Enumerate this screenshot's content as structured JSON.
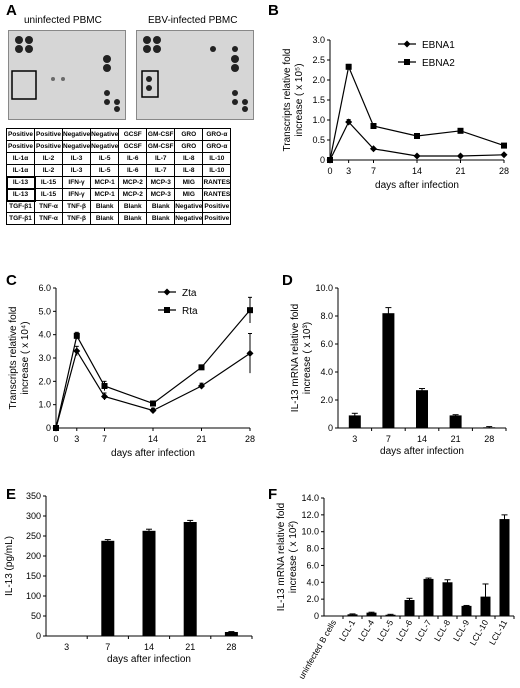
{
  "panels": {
    "A": {
      "letter": "A",
      "labels": [
        "uninfected PBMC",
        "EBV-infected PBMC"
      ],
      "grid": [
        [
          "Positive",
          "Positive",
          "Negative",
          "Negative",
          "GCSF",
          "GM-CSF",
          "GRO",
          "GRO-α"
        ],
        [
          "Positive",
          "Positive",
          "Negative",
          "Negative",
          "GCSF",
          "GM-CSF",
          "GRO",
          "GRO-α"
        ],
        [
          "IL-1α",
          "IL-2",
          "IL-3",
          "IL-5",
          "IL-6",
          "IL-7",
          "IL-8",
          "IL-10"
        ],
        [
          "IL-1α",
          "IL-2",
          "IL-3",
          "IL-5",
          "IL-6",
          "IL-7",
          "IL-8",
          "IL-10"
        ],
        [
          "IL-13",
          "IL-15",
          "IFN-γ",
          "MCP-1",
          "MCP-2",
          "MCP-3",
          "MIG",
          "RANTES"
        ],
        [
          "IL-13",
          "IL-15",
          "IFN-γ",
          "MCP-1",
          "MCP-2",
          "MCP-3",
          "MIG",
          "RANTES"
        ],
        [
          "TGF-β1",
          "TNF-α",
          "TNF-β",
          "Blank",
          "Blank",
          "Blank",
          "Negative",
          "Positive"
        ],
        [
          "TGF-β1",
          "TNF-α",
          "TNF-β",
          "Blank",
          "Blank",
          "Blank",
          "Negative",
          "Positive"
        ]
      ]
    },
    "B": {
      "letter": "B"
    },
    "C": {
      "letter": "C"
    },
    "D": {
      "letter": "D"
    },
    "E": {
      "letter": "E"
    },
    "F": {
      "letter": "F"
    }
  },
  "chart_data": [
    {
      "id": "B",
      "type": "line",
      "x": [
        0,
        3,
        7,
        14,
        21,
        28
      ],
      "xticks": [
        "0",
        "3",
        "7",
        "14",
        "21",
        "28"
      ],
      "xlim": [
        0,
        28
      ],
      "xlabel": "days after infection",
      "ylabel": [
        "Transcripts relative fold",
        "increase ( x 10⁵)"
      ],
      "ylim": [
        0,
        3.0
      ],
      "yticks": [
        "0",
        "0.5",
        "1.0",
        "1.5",
        "2.0",
        "2.5",
        "3.0"
      ],
      "legend_position": "top-right",
      "series": [
        {
          "name": "EBNA1",
          "marker": "diamond",
          "values": [
            0,
            0.95,
            0.28,
            0.1,
            0.1,
            0.13
          ],
          "errors": [
            0,
            0.06,
            0.02,
            0.01,
            0.01,
            0.01
          ]
        },
        {
          "name": "EBNA2",
          "marker": "square",
          "values": [
            0,
            2.33,
            0.85,
            0.6,
            0.73,
            0.36
          ],
          "errors": [
            0,
            0.06,
            0.04,
            0.02,
            0.03,
            0.03
          ]
        }
      ]
    },
    {
      "id": "C",
      "type": "line",
      "x": [
        0,
        3,
        7,
        14,
        21,
        28
      ],
      "xticks": [
        "0",
        "3",
        "7",
        "14",
        "21",
        "28"
      ],
      "xlim": [
        0,
        28
      ],
      "xlabel": "days after infection",
      "ylabel": [
        "Transcripts relative fold",
        "increase ( x 10⁴)"
      ],
      "ylim": [
        0,
        6.0
      ],
      "yticks": [
        "0",
        "1.0",
        "2.0",
        "3.0",
        "4.0",
        "5.0",
        "6.0"
      ],
      "legend_position": "top-right",
      "series": [
        {
          "name": "Zta",
          "marker": "diamond",
          "values": [
            0,
            3.3,
            1.35,
            0.75,
            1.8,
            3.2
          ],
          "errors": [
            0,
            0.2,
            0.15,
            0.1,
            0.12,
            0.85
          ]
        },
        {
          "name": "Rta",
          "marker": "square",
          "values": [
            0,
            3.95,
            1.8,
            1.05,
            2.6,
            5.05
          ],
          "errors": [
            0,
            0.15,
            0.2,
            0.1,
            0.1,
            0.55
          ]
        }
      ]
    },
    {
      "id": "D",
      "type": "bar",
      "categories": [
        "3",
        "7",
        "14",
        "21",
        "28"
      ],
      "values": [
        0.9,
        8.2,
        2.7,
        0.9,
        0.05
      ],
      "errors": [
        0.15,
        0.4,
        0.12,
        0.05,
        0.05
      ],
      "xlabel": "days after infection",
      "ylabel": [
        "IL-13 mRNA relative fold",
        "increase ( x 10³)"
      ],
      "ylim": [
        0,
        10.0
      ],
      "yticks": [
        "0",
        "2.0",
        "4.0",
        "6.0",
        "8.0",
        "10.0"
      ]
    },
    {
      "id": "E",
      "type": "bar",
      "categories": [
        "3",
        "7",
        "14",
        "21",
        "28"
      ],
      "values": [
        0,
        238,
        263,
        285,
        10
      ],
      "errors": [
        0,
        3,
        4,
        4,
        1
      ],
      "xlabel": "days after infection",
      "ylabel": [
        "IL-13 (pg/mL)"
      ],
      "ylim": [
        0,
        350
      ],
      "yticks": [
        "0",
        "50",
        "100",
        "150",
        "200",
        "250",
        "300",
        "350"
      ]
    },
    {
      "id": "F",
      "type": "bar",
      "categories": [
        "uninfected B cells",
        "LCL-1",
        "LCL-4",
        "LCL-5",
        "LCL-6",
        "LCL-7",
        "LCL-8",
        "LCL-9",
        "LCL-10",
        "LCL-11"
      ],
      "values": [
        0,
        0.2,
        0.4,
        0.15,
        1.9,
        4.4,
        4.0,
        1.2,
        2.3,
        11.5
      ],
      "errors": [
        0,
        0.05,
        0.05,
        0.05,
        0.2,
        0.1,
        0.3,
        0.05,
        1.5,
        0.5
      ],
      "xlabel": "",
      "ylabel": [
        "IL-13 mRNA relative fold",
        "increase ( x 10²)"
      ],
      "ylim": [
        0,
        14.0
      ],
      "yticks": [
        "0",
        "2.0",
        "4.0",
        "6.0",
        "8.0",
        "10.0",
        "12.0",
        "14.0"
      ]
    }
  ]
}
